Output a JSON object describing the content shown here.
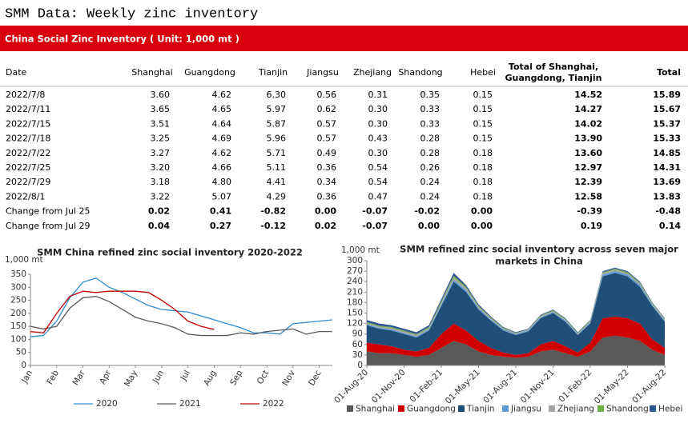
{
  "header": {
    "title": "SMM Data: Weekly zinc inventory",
    "banner": "China Social Zinc Inventory ( Unit: 1,000 mt )"
  },
  "table": {
    "columns": [
      "Date",
      "Shanghai",
      "Guangdong",
      "Tianjin",
      "Jiangsu",
      "Zhejiang",
      "Shandong",
      "Hebei",
      "Total of Shanghai,\nGuangdong, Tianjin",
      "Total"
    ],
    "rows": [
      [
        "2022/7/8",
        "3.60",
        "4.62",
        "6.30",
        "0.56",
        "0.31",
        "0.35",
        "0.15",
        "14.52",
        "15.89"
      ],
      [
        "2022/7/11",
        "3.65",
        "4.65",
        "5.97",
        "0.62",
        "0.30",
        "0.33",
        "0.15",
        "14.27",
        "15.67"
      ],
      [
        "2022/7/15",
        "3.51",
        "4.64",
        "5.87",
        "0.57",
        "0.30",
        "0.33",
        "0.15",
        "14.02",
        "15.37"
      ],
      [
        "2022/7/18",
        "3.25",
        "4.69",
        "5.96",
        "0.57",
        "0.43",
        "0.28",
        "0.15",
        "13.90",
        "15.33"
      ],
      [
        "2022/7/22",
        "3.27",
        "4.62",
        "5.71",
        "0.49",
        "0.30",
        "0.28",
        "0.18",
        "13.60",
        "14.85"
      ],
      [
        "2022/7/25",
        "3.20",
        "4.66",
        "5.11",
        "0.36",
        "0.54",
        "0.26",
        "0.18",
        "12.97",
        "14.31"
      ],
      [
        "2022/7/29",
        "3.18",
        "4.80",
        "4.41",
        "0.34",
        "0.54",
        "0.24",
        "0.18",
        "12.39",
        "13.69"
      ],
      [
        "2022/8/1",
        "3.22",
        "5.07",
        "4.29",
        "0.36",
        "0.47",
        "0.24",
        "0.18",
        "12.58",
        "13.83"
      ],
      [
        "Change from Jul 25",
        "0.02",
        "0.41",
        "-0.82",
        "0.00",
        "-0.07",
        "-0.02",
        "0.00",
        "-0.39",
        "-0.48"
      ],
      [
        "Change from Jul 29",
        "0.04",
        "0.27",
        "-0.12",
        "0.02",
        "-0.07",
        "0.00",
        "0.00",
        "0.19",
        "0.14"
      ]
    ]
  },
  "chart_data": [
    {
      "type": "line",
      "title": "SMM China refined zinc social inventory 2020-2022",
      "y_label": "1,000 mt",
      "categories": [
        "Jan",
        null,
        "Feb",
        null,
        "Mar",
        null,
        "Apr",
        null,
        "May",
        null,
        "Jun",
        null,
        "Jul",
        null,
        "Aug",
        null,
        "Sep",
        null,
        "Oct",
        null,
        "Nov",
        null,
        "Dec",
        null
      ],
      "ylim": [
        0,
        350
      ],
      "yticks": [
        0,
        50,
        100,
        150,
        200,
        250,
        300,
        350
      ],
      "series": [
        {
          "name": "2020",
          "color": "#2e8bd0",
          "values": [
            110,
            115,
            170,
            260,
            320,
            335,
            300,
            280,
            255,
            230,
            215,
            210,
            205,
            190,
            175,
            160,
            145,
            125,
            125,
            120,
            160,
            165,
            170,
            175
          ]
        },
        {
          "name": "2021",
          "color": "#595959",
          "values": [
            150,
            140,
            150,
            220,
            260,
            265,
            245,
            215,
            185,
            170,
            160,
            145,
            120,
            115,
            115,
            115,
            125,
            120,
            130,
            135,
            140,
            120,
            130,
            130
          ]
        },
        {
          "name": "2022",
          "color": "#c00000",
          "values": [
            130,
            125,
            200,
            265,
            285,
            280,
            285,
            285,
            285,
            280,
            250,
            215,
            170,
            150,
            138,
            null,
            null,
            null,
            null,
            null,
            null,
            null,
            null,
            null
          ]
        }
      ]
    },
    {
      "type": "stacked_area",
      "title": [
        "SMM refined zinc social inventory across seven major",
        "markets in China"
      ],
      "y_label": "1,000 mt",
      "categories": [
        "01-Aug-20",
        null,
        null,
        "01-Nov-20",
        null,
        null,
        "01-Feb-21",
        null,
        null,
        "01-May-21",
        null,
        null,
        "01-Aug-21",
        null,
        null,
        "01-Nov-21",
        null,
        null,
        "01-Feb-22",
        null,
        null,
        "01-May-22",
        null,
        null,
        "01-Aug-22"
      ],
      "ylim": [
        0,
        300
      ],
      "yticks": [
        0,
        30,
        60,
        90,
        120,
        150,
        180,
        210,
        240,
        270,
        300
      ],
      "series": [
        {
          "name": "Shanghai",
          "color": "#595959",
          "values": [
            40,
            35,
            35,
            30,
            25,
            30,
            50,
            70,
            60,
            40,
            30,
            25,
            22,
            25,
            40,
            45,
            35,
            25,
            40,
            80,
            85,
            80,
            70,
            45,
            30
          ]
        },
        {
          "name": "Guangdong",
          "color": "#d00000",
          "values": [
            25,
            25,
            20,
            15,
            15,
            20,
            40,
            50,
            40,
            30,
            20,
            12,
            8,
            10,
            20,
            25,
            20,
            12,
            25,
            55,
            55,
            55,
            50,
            30,
            20
          ]
        },
        {
          "name": "Tianjin",
          "color": "#1f4e79",
          "values": [
            50,
            45,
            45,
            45,
            40,
            50,
            80,
            120,
            110,
            90,
            78,
            63,
            57,
            62,
            75,
            80,
            70,
            50,
            55,
            120,
            125,
            120,
            105,
            95,
            75
          ]
        },
        {
          "name": "Jiangsu",
          "color": "#5b9bd5",
          "values": [
            3,
            3,
            3,
            3,
            3,
            3,
            4,
            5,
            5,
            4,
            3,
            3,
            3,
            3,
            3,
            3,
            3,
            2,
            3,
            5,
            5,
            5,
            5,
            3,
            3
          ]
        },
        {
          "name": "Zhejiang",
          "color": "#a5a5a5",
          "values": [
            3,
            3,
            4,
            4,
            4,
            4,
            6,
            7,
            6,
            4,
            4,
            3,
            2,
            2,
            3,
            3,
            3,
            2,
            3,
            4,
            4,
            4,
            4,
            3,
            3
          ]
        },
        {
          "name": "Shandong",
          "color": "#70ad47",
          "values": [
            3,
            3,
            3,
            3,
            3,
            3,
            4,
            5,
            4,
            3,
            2,
            2,
            1,
            1,
            2,
            2,
            2,
            2,
            2,
            3,
            3,
            3,
            3,
            2,
            2
          ]
        },
        {
          "name": "Hebei",
          "color": "#2f5597",
          "values": [
            6,
            6,
            5,
            5,
            5,
            5,
            6,
            8,
            5,
            4,
            3,
            2,
            2,
            2,
            2,
            2,
            2,
            2,
            2,
            3,
            3,
            3,
            3,
            2,
            2
          ]
        }
      ]
    }
  ]
}
